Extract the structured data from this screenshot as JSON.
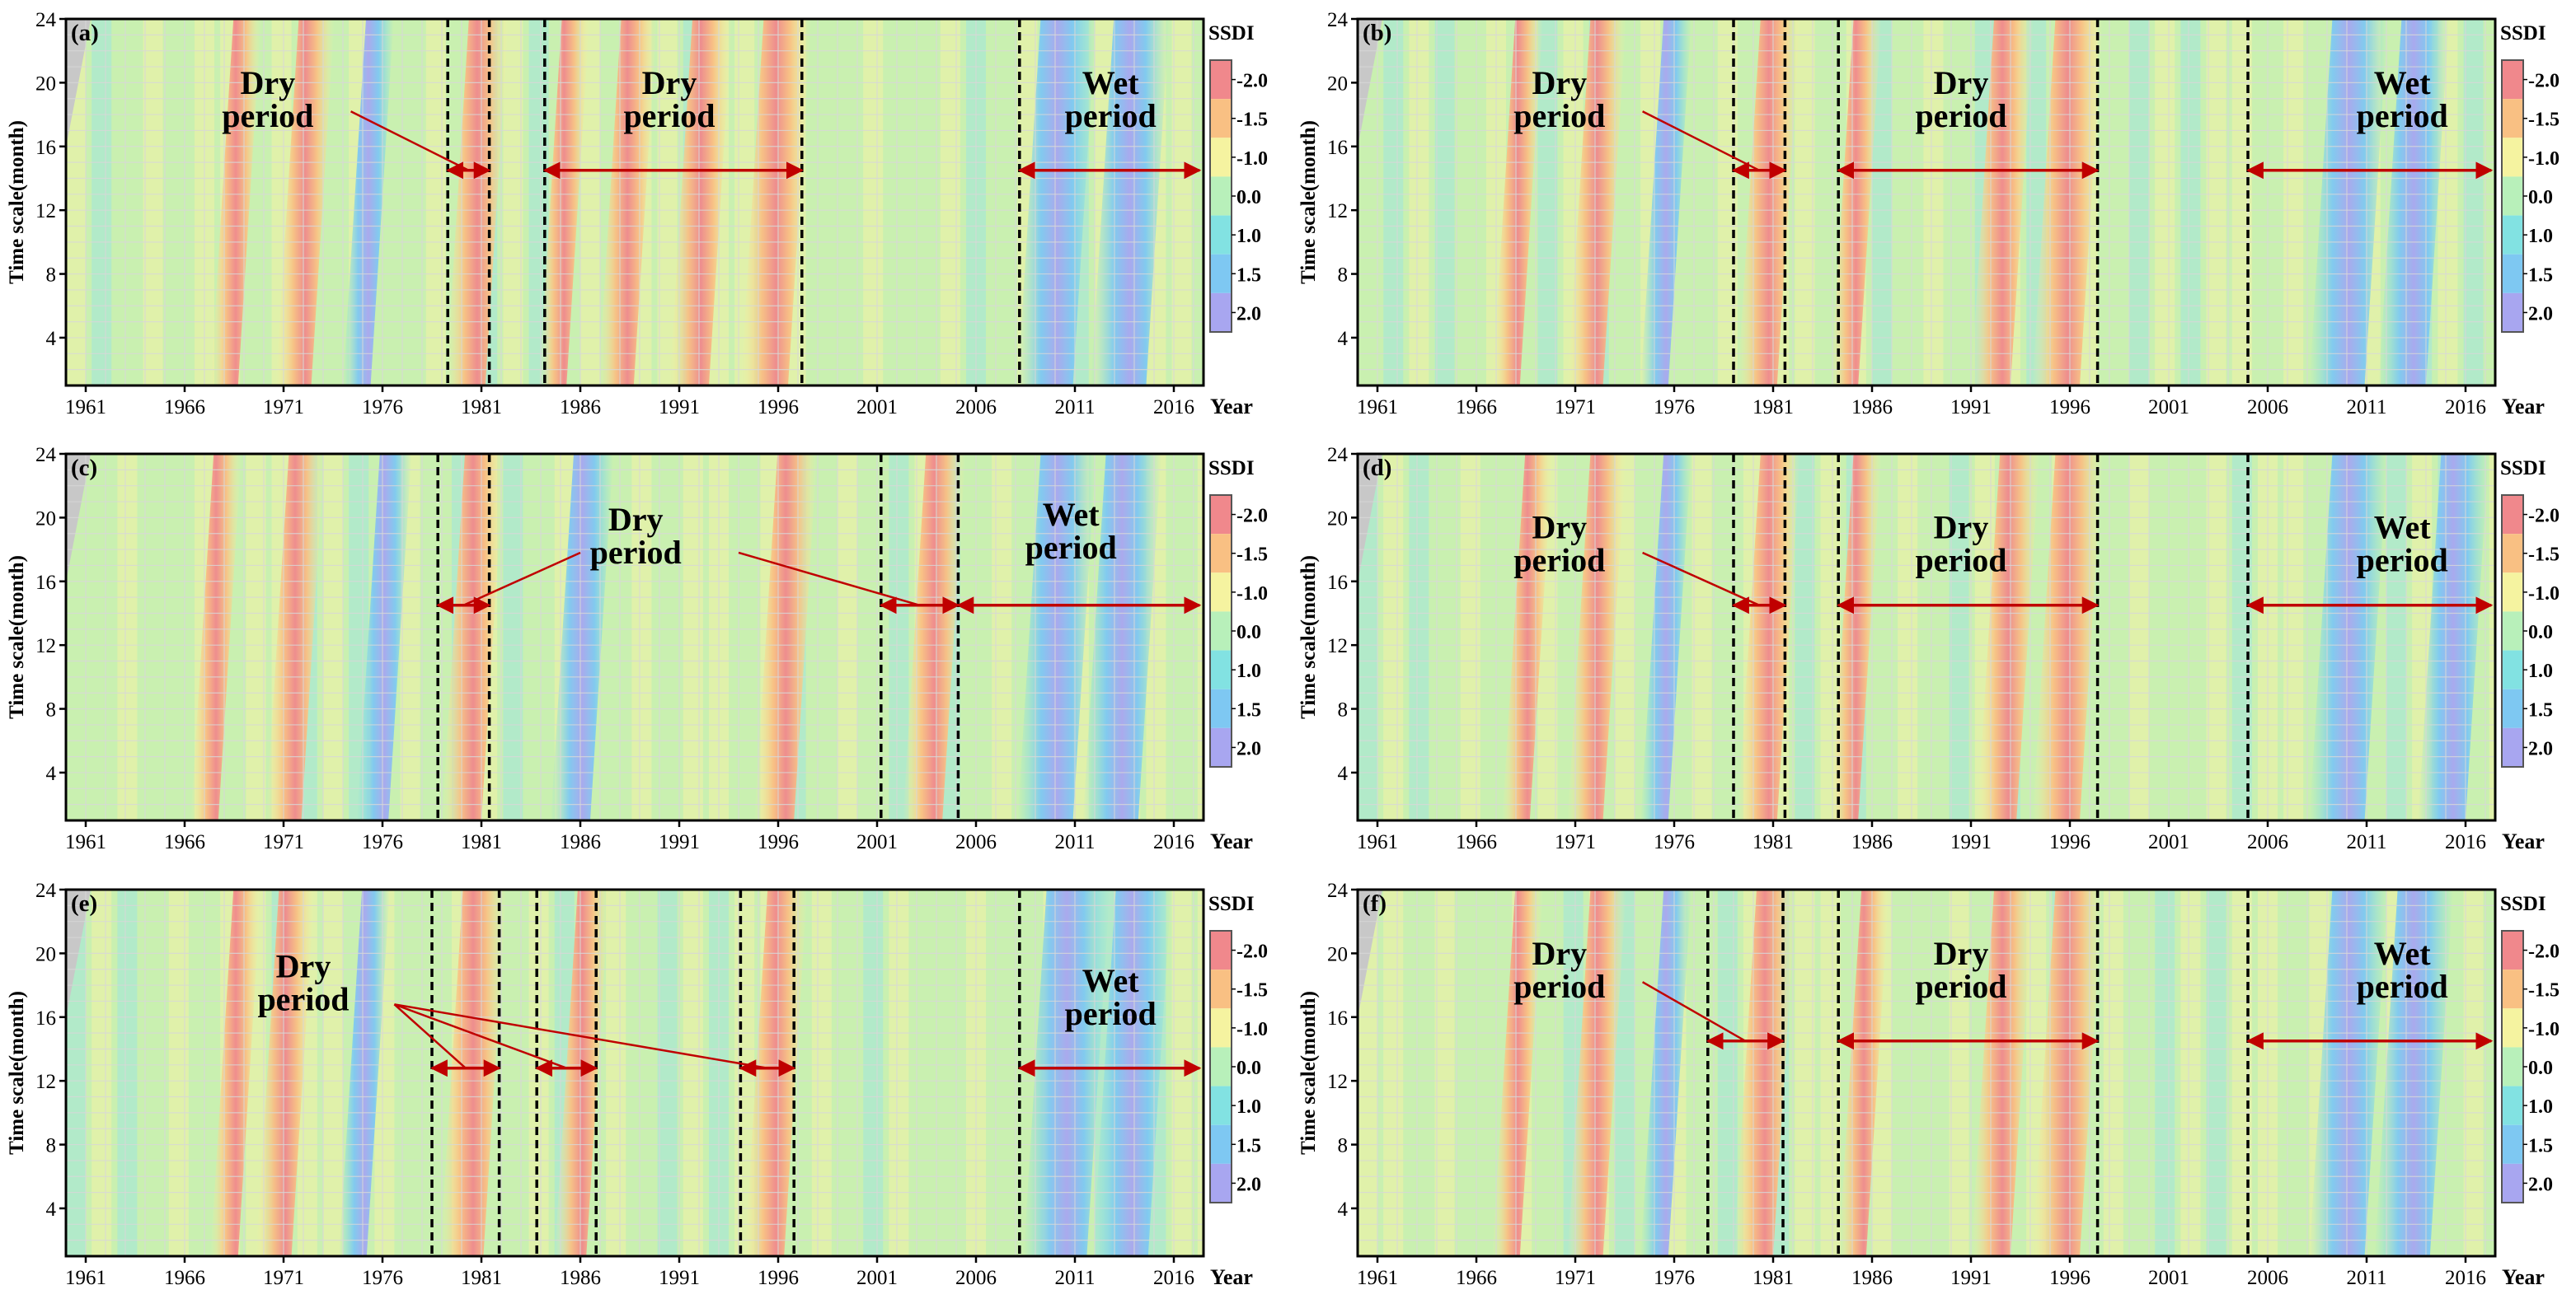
{
  "figure": {
    "colorbar_title": "SSDI",
    "colorbar_labels": [
      "-2.0",
      "-1.5",
      "-1.0",
      "0.0",
      "1.0",
      "1.5",
      "2.0"
    ],
    "colorbar_colors": [
      "#f0888c",
      "#f9c083",
      "#f5f3a0",
      "#b8f0ba",
      "#82e2e2",
      "#7ec8f2",
      "#a8a6f0"
    ],
    "background_color": "#c9f0b0",
    "period_arrow_color": "#c00000",
    "boundary_line_color": "#000000"
  },
  "chart_data": [
    {
      "type": "heatmap",
      "panel_label": "(a)",
      "xlabel": "Year",
      "ylabel": "Time scale(month)",
      "xticks": [
        "1961",
        "1966",
        "1971",
        "1976",
        "1981",
        "1986",
        "1991",
        "1996",
        "2001",
        "2006",
        "2011",
        "2016"
      ],
      "yticks": [
        "4",
        "8",
        "12",
        "16",
        "20",
        "24"
      ],
      "xlim": [
        1960,
        2017.5
      ],
      "ylim": [
        1,
        24
      ],
      "colorbar_title": "SSDI",
      "features": [
        {
          "kind": "dry",
          "x": 1968,
          "halfwidth": 0.7
        },
        {
          "kind": "dry",
          "x": 1971.5,
          "halfwidth": 0.9
        },
        {
          "kind": "wet",
          "x": 1974.7,
          "halfwidth": 0.7
        },
        {
          "kind": "dry",
          "x": 1980.2,
          "halfwidth": 1.0
        },
        {
          "kind": "dry",
          "x": 1984.6,
          "halfwidth": 0.7
        },
        {
          "kind": "dry",
          "x": 1987.8,
          "halfwidth": 0.9
        },
        {
          "kind": "dry",
          "x": 1991.5,
          "halfwidth": 1.0
        },
        {
          "kind": "dry",
          "x": 1995.3,
          "halfwidth": 1.2
        },
        {
          "kind": "wet",
          "x": 2009.5,
          "halfwidth": 1.4
        },
        {
          "kind": "wet",
          "x": 2013.2,
          "halfwidth": 1.4
        }
      ],
      "boundaries": [
        1979.3,
        1981.4,
        1984.2,
        1997.2,
        2008.2
      ],
      "periods": [
        {
          "label": "Dry\nperiod",
          "arrows": [
            {
              "from": 1979.3,
              "to": 1981.4,
              "y": 14.5
            }
          ],
          "text_at": [
            1970.2,
            19.3
          ],
          "pointer_from": [
            1974.4,
            18.2
          ]
        },
        {
          "label": "Dry\nperiod",
          "arrows": [
            {
              "from": 1984.2,
              "to": 1997.2,
              "y": 14.5
            }
          ],
          "text_at": [
            1990.5,
            19.3
          ],
          "pointer_from": null
        },
        {
          "label": "Wet\nperiod",
          "arrows": [
            {
              "from": 2008.2,
              "to": 2017.3,
              "y": 14.5
            }
          ],
          "text_at": [
            2012.8,
            19.3
          ],
          "pointer_from": null
        }
      ]
    },
    {
      "type": "heatmap",
      "panel_label": "(b)",
      "xlabel": "Year",
      "ylabel": "Time scale(month)",
      "xticks": [
        "1961",
        "1966",
        "1971",
        "1976",
        "1981",
        "1986",
        "1991",
        "1996",
        "2001",
        "2006",
        "2011",
        "2016"
      ],
      "yticks": [
        "4",
        "8",
        "12",
        "16",
        "20",
        "24"
      ],
      "xlim": [
        1960,
        2017.5
      ],
      "ylim": [
        1,
        24
      ],
      "colorbar_title": "SSDI",
      "features": [
        {
          "kind": "dry",
          "x": 1967.5,
          "halfwidth": 0.7
        },
        {
          "kind": "dry",
          "x": 1971.5,
          "halfwidth": 0.9
        },
        {
          "kind": "wet",
          "x": 1975,
          "halfwidth": 0.7
        },
        {
          "kind": "dry",
          "x": 1980.2,
          "halfwidth": 1.0
        },
        {
          "kind": "dry",
          "x": 1984.6,
          "halfwidth": 0.7
        },
        {
          "kind": "dry",
          "x": 1992,
          "halfwidth": 1.0
        },
        {
          "kind": "dry",
          "x": 1995.3,
          "halfwidth": 1.2
        },
        {
          "kind": "wet",
          "x": 2009.5,
          "halfwidth": 1.4
        },
        {
          "kind": "wet",
          "x": 2012.8,
          "halfwidth": 1.2
        }
      ],
      "boundaries": [
        1979,
        1981.6,
        1984.3,
        1997.4,
        2005
      ],
      "periods": [
        {
          "label": "Dry\nperiod",
          "arrows": [
            {
              "from": 1979,
              "to": 1981.6,
              "y": 14.5
            }
          ],
          "text_at": [
            1970.2,
            19.3
          ],
          "pointer_from": [
            1974.4,
            18.2
          ]
        },
        {
          "label": "Dry\nperiod",
          "arrows": [
            {
              "from": 1984.3,
              "to": 1997.4,
              "y": 14.5
            }
          ],
          "text_at": [
            1990.5,
            19.3
          ],
          "pointer_from": null
        },
        {
          "label": "Wet\nperiod",
          "arrows": [
            {
              "from": 2005,
              "to": 2017.3,
              "y": 14.5
            }
          ],
          "text_at": [
            2012.8,
            19.3
          ],
          "pointer_from": null
        }
      ]
    },
    {
      "type": "heatmap",
      "panel_label": "(c)",
      "xlabel": "Year",
      "ylabel": "Time scale(month)",
      "xticks": [
        "1961",
        "1966",
        "1971",
        "1976",
        "1981",
        "1986",
        "1991",
        "1996",
        "2001",
        "2006",
        "2011",
        "2016"
      ],
      "yticks": [
        "4",
        "8",
        "12",
        "16",
        "20",
        "24"
      ],
      "xlim": [
        1960,
        2017.5
      ],
      "ylim": [
        1,
        24
      ],
      "colorbar_title": "SSDI",
      "features": [
        {
          "kind": "dry",
          "x": 1967,
          "halfwidth": 0.7
        },
        {
          "kind": "dry",
          "x": 1971,
          "halfwidth": 0.9
        },
        {
          "kind": "wet",
          "x": 1975.5,
          "halfwidth": 0.8
        },
        {
          "kind": "dry",
          "x": 1980,
          "halfwidth": 1.0
        },
        {
          "kind": "wet",
          "x": 1985.5,
          "halfwidth": 1.0
        },
        {
          "kind": "dry",
          "x": 1995.8,
          "halfwidth": 1.0
        },
        {
          "kind": "dry",
          "x": 2003.3,
          "halfwidth": 1.0
        },
        {
          "kind": "wet",
          "x": 2009.5,
          "halfwidth": 1.4
        },
        {
          "kind": "wet",
          "x": 2012.8,
          "halfwidth": 1.4
        }
      ],
      "boundaries": [
        1978.8,
        1981.4,
        2001.2,
        2005.1
      ],
      "periods": [
        {
          "label": "Dry\nperiod",
          "arrows": [
            {
              "from": 1978.8,
              "to": 1981.4,
              "y": 14.5
            },
            {
              "from": 2001.2,
              "to": 2005.1,
              "y": 14.5
            }
          ],
          "text_at": [
            1988.8,
            19.2
          ],
          "pointer_from": [
            1986,
            17.8
          ],
          "pointer_from2": [
            1994,
            17.8
          ]
        },
        {
          "label": "Wet\nperiod",
          "arrows": [
            {
              "from": 2005.1,
              "to": 2017.3,
              "y": 14.5
            }
          ],
          "text_at": [
            2010.8,
            19.5
          ],
          "pointer_from": null
        }
      ]
    },
    {
      "type": "heatmap",
      "panel_label": "(d)",
      "xlabel": "Year",
      "ylabel": "Time scale(month)",
      "xticks": [
        "1961",
        "1966",
        "1971",
        "1976",
        "1981",
        "1986",
        "1991",
        "1996",
        "2001",
        "2006",
        "2011",
        "2016"
      ],
      "yticks": [
        "4",
        "8",
        "12",
        "16",
        "20",
        "24"
      ],
      "xlim": [
        1960,
        2017.5
      ],
      "ylim": [
        1,
        24
      ],
      "colorbar_title": "SSDI",
      "features": [
        {
          "kind": "dry",
          "x": 1968,
          "halfwidth": 0.7
        },
        {
          "kind": "dry",
          "x": 1971.5,
          "halfwidth": 0.9
        },
        {
          "kind": "wet",
          "x": 1975,
          "halfwidth": 0.7
        },
        {
          "kind": "dry",
          "x": 1980.2,
          "halfwidth": 1.0
        },
        {
          "kind": "dry",
          "x": 1984.6,
          "halfwidth": 0.7
        },
        {
          "kind": "dry",
          "x": 1992.3,
          "halfwidth": 1.0
        },
        {
          "kind": "dry",
          "x": 1995.3,
          "halfwidth": 1.2
        },
        {
          "kind": "wet",
          "x": 2009.5,
          "halfwidth": 1.4
        },
        {
          "kind": "wet",
          "x": 2014.8,
          "halfwidth": 1.2
        }
      ],
      "boundaries": [
        1979,
        1981.6,
        1984.3,
        1997.4,
        2005
      ],
      "periods": [
        {
          "label": "Dry\nperiod",
          "arrows": [
            {
              "from": 1979,
              "to": 1981.6,
              "y": 14.5
            }
          ],
          "text_at": [
            1970.2,
            18.7
          ],
          "pointer_from": [
            1974.4,
            17.8
          ]
        },
        {
          "label": "Dry\nperiod",
          "arrows": [
            {
              "from": 1984.3,
              "to": 1997.4,
              "y": 14.5
            }
          ],
          "text_at": [
            1990.5,
            18.7
          ],
          "pointer_from": null
        },
        {
          "label": "Wet\nperiod",
          "arrows": [
            {
              "from": 2005,
              "to": 2017.3,
              "y": 14.5
            }
          ],
          "text_at": [
            2012.8,
            18.7
          ],
          "pointer_from": null
        }
      ]
    },
    {
      "type": "heatmap",
      "panel_label": "(e)",
      "xlabel": "Year",
      "ylabel": "Time scale(month)",
      "xticks": [
        "1961",
        "1966",
        "1971",
        "1976",
        "1981",
        "1986",
        "1991",
        "1996",
        "2001",
        "2006",
        "2011",
        "2016"
      ],
      "yticks": [
        "4",
        "8",
        "12",
        "16",
        "20",
        "24"
      ],
      "xlim": [
        1960,
        2017.5
      ],
      "ylim": [
        1,
        24
      ],
      "colorbar_title": "SSDI",
      "features": [
        {
          "kind": "dry",
          "x": 1968,
          "halfwidth": 0.7
        },
        {
          "kind": "dry",
          "x": 1970.5,
          "halfwidth": 0.9
        },
        {
          "kind": "wet",
          "x": 1974.5,
          "halfwidth": 0.7
        },
        {
          "kind": "dry",
          "x": 1980,
          "halfwidth": 1.1
        },
        {
          "kind": "dry",
          "x": 1985.5,
          "halfwidth": 0.8
        },
        {
          "kind": "dry",
          "x": 1995.3,
          "halfwidth": 1.0
        },
        {
          "kind": "wet",
          "x": 2010,
          "halfwidth": 1.6
        },
        {
          "kind": "wet",
          "x": 2013.3,
          "halfwidth": 1.4
        }
      ],
      "boundaries": [
        1978.5,
        1981.9,
        1983.8,
        1986.8,
        1994.1,
        1996.8,
        2008.2
      ],
      "periods": [
        {
          "label": "Dry\nperiod",
          "arrows": [
            {
              "from": 1978.5,
              "to": 1981.9,
              "y": 12.8
            },
            {
              "from": 1983.8,
              "to": 1986.8,
              "y": 12.8
            },
            {
              "from": 1994.1,
              "to": 1996.8,
              "y": 12.8
            }
          ],
          "text_at": [
            1972,
            18.5
          ],
          "pointer_from": [
            1976.6,
            16.8
          ]
        },
        {
          "label": "Wet\nperiod",
          "arrows": [
            {
              "from": 2008.2,
              "to": 2017.3,
              "y": 12.8
            }
          ],
          "text_at": [
            2012.8,
            17.6
          ],
          "pointer_from": null
        }
      ]
    },
    {
      "type": "heatmap",
      "panel_label": "(f)",
      "xlabel": "Year",
      "ylabel": "Time scale(month)",
      "xticks": [
        "1961",
        "1966",
        "1971",
        "1976",
        "1981",
        "1986",
        "1991",
        "1996",
        "2001",
        "2006",
        "2011",
        "2016"
      ],
      "yticks": [
        "4",
        "8",
        "12",
        "16",
        "20",
        "24"
      ],
      "xlim": [
        1960,
        2017.5
      ],
      "ylim": [
        1,
        24
      ],
      "colorbar_title": "SSDI",
      "features": [
        {
          "kind": "dry",
          "x": 1967.5,
          "halfwidth": 0.7
        },
        {
          "kind": "dry",
          "x": 1971.5,
          "halfwidth": 0.9
        },
        {
          "kind": "wet",
          "x": 1975,
          "halfwidth": 0.7
        },
        {
          "kind": "dry",
          "x": 1980,
          "halfwidth": 1.0
        },
        {
          "kind": "dry",
          "x": 1985,
          "halfwidth": 0.7
        },
        {
          "kind": "dry",
          "x": 1992,
          "halfwidth": 1.0
        },
        {
          "kind": "dry",
          "x": 1995.3,
          "halfwidth": 1.2
        },
        {
          "kind": "wet",
          "x": 2009.5,
          "halfwidth": 1.4
        },
        {
          "kind": "wet",
          "x": 2012.8,
          "halfwidth": 1.4
        }
      ],
      "boundaries": [
        1977.7,
        1981.5,
        1984.3,
        1997.4,
        2005
      ],
      "periods": [
        {
          "label": "Dry\nperiod",
          "arrows": [
            {
              "from": 1977.7,
              "to": 1981.5,
              "y": 14.5
            }
          ],
          "text_at": [
            1970.2,
            19.3
          ],
          "pointer_from": [
            1974.4,
            18.2
          ]
        },
        {
          "label": "Dry\nperiod",
          "arrows": [
            {
              "from": 1984.3,
              "to": 1997.4,
              "y": 14.5
            }
          ],
          "text_at": [
            1990.5,
            19.3
          ],
          "pointer_from": null
        },
        {
          "label": "Wet\nperiod",
          "arrows": [
            {
              "from": 2005,
              "to": 2017.3,
              "y": 14.5
            }
          ],
          "text_at": [
            2012.8,
            19.3
          ],
          "pointer_from": null
        }
      ]
    }
  ]
}
